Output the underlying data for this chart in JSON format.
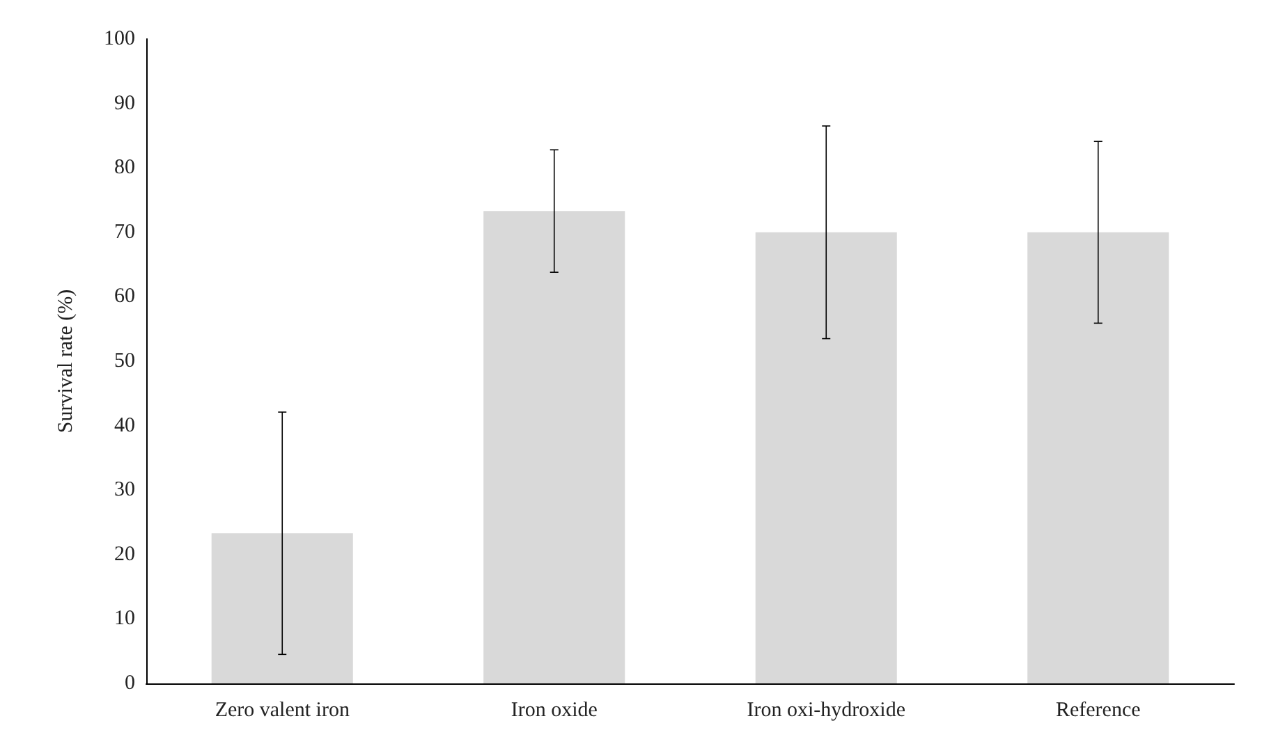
{
  "chart_data": {
    "type": "bar",
    "ylabel": "Survival rate (%)",
    "categories": [
      "Zero valent iron",
      "Iron oxide",
      "Iron oxi-hydroxide",
      "Reference"
    ],
    "values": [
      23.3,
      73.3,
      70,
      70
    ],
    "errors": [
      18.8,
      9.5,
      16.5,
      14.1
    ],
    "color": "#d9d9d9",
    "ylim": [
      0,
      100
    ],
    "yticks": [
      0,
      10,
      20,
      30,
      40,
      50,
      60,
      70,
      80,
      90,
      100
    ],
    "grid": false
  }
}
